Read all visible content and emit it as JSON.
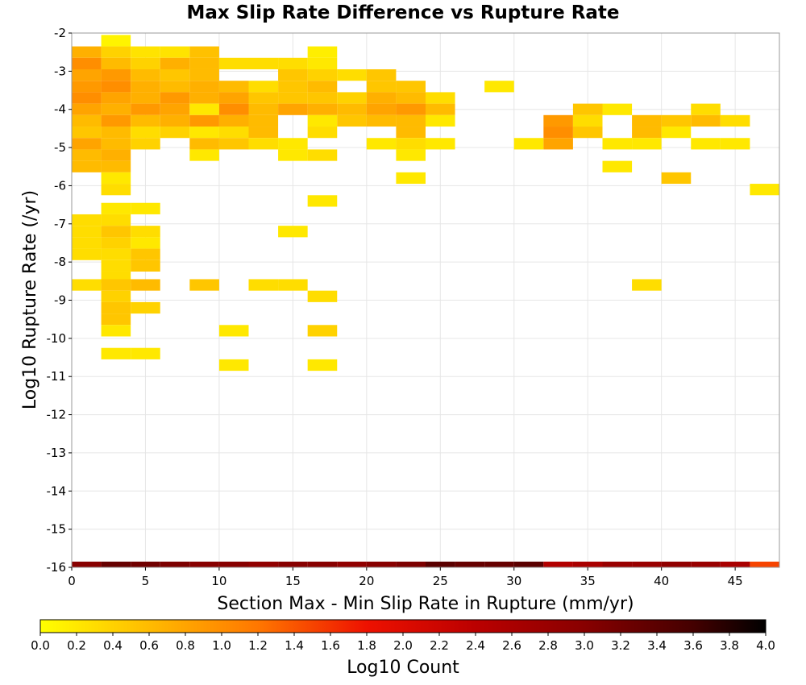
{
  "chart_data": {
    "type": "heatmap",
    "title": "Max Slip Rate Difference vs Rupture Rate",
    "xlabel": "Section Max - Min Slip Rate in Rupture (mm/yr)",
    "ylabel": "Log10 Rupture Rate (/yr)",
    "xlim": [
      0,
      48
    ],
    "ylim": [
      -16,
      -2
    ],
    "x_bin_width": 2,
    "y_bin_height": 0.3,
    "x_ticks": [
      "0",
      "5",
      "10",
      "15",
      "20",
      "25",
      "30",
      "35",
      "40",
      "45"
    ],
    "y_ticks": [
      "-2",
      "-3",
      "-4",
      "-5",
      "-6",
      "-7",
      "-8",
      "-9",
      "-10",
      "-11",
      "-12",
      "-13",
      "-14",
      "-15",
      "-16"
    ],
    "grid": true,
    "colorscale": {
      "label": "Log10 Count",
      "min": 0.0,
      "max": 4.0,
      "ticks": [
        "0.0",
        "0.2",
        "0.4",
        "0.6",
        "0.8",
        "1.0",
        "1.2",
        "1.4",
        "1.6",
        "1.8",
        "2.0",
        "2.2",
        "2.4",
        "2.6",
        "2.8",
        "3.0",
        "3.2",
        "3.4",
        "3.6",
        "3.8",
        "4.0"
      ],
      "stops": [
        {
          "v": 0.0,
          "color": "#ffff00"
        },
        {
          "v": 0.6,
          "color": "#ffbb00"
        },
        {
          "v": 1.2,
          "color": "#ff7700"
        },
        {
          "v": 1.8,
          "color": "#ee1100"
        },
        {
          "v": 2.4,
          "color": "#bb0000"
        },
        {
          "v": 3.0,
          "color": "#880000"
        },
        {
          "v": 3.6,
          "color": "#440000"
        },
        {
          "v": 4.0,
          "color": "#000000"
        }
      ]
    },
    "cells": [
      [
        2,
        -2.2,
        0.1
      ],
      [
        0,
        -2.5,
        0.7
      ],
      [
        2,
        -2.5,
        0.4
      ],
      [
        4,
        -2.5,
        0.25
      ],
      [
        6,
        -2.5,
        0.25
      ],
      [
        8,
        -2.5,
        0.55
      ],
      [
        16,
        -2.5,
        0.15
      ],
      [
        0,
        -2.8,
        1.0
      ],
      [
        2,
        -2.8,
        0.6
      ],
      [
        4,
        -2.8,
        0.4
      ],
      [
        6,
        -2.8,
        0.7
      ],
      [
        8,
        -2.8,
        0.6
      ],
      [
        10,
        -2.8,
        0.3
      ],
      [
        12,
        -2.8,
        0.3
      ],
      [
        14,
        -2.8,
        0.3
      ],
      [
        16,
        -2.8,
        0.2
      ],
      [
        0,
        -3.1,
        0.8
      ],
      [
        2,
        -3.1,
        0.9
      ],
      [
        4,
        -3.1,
        0.6
      ],
      [
        6,
        -3.1,
        0.5
      ],
      [
        8,
        -3.1,
        0.6
      ],
      [
        14,
        -3.1,
        0.5
      ],
      [
        16,
        -3.1,
        0.4
      ],
      [
        18,
        -3.1,
        0.3
      ],
      [
        20,
        -3.1,
        0.5
      ],
      [
        0,
        -3.4,
        0.9
      ],
      [
        2,
        -3.4,
        1.0
      ],
      [
        4,
        -3.4,
        0.7
      ],
      [
        6,
        -3.4,
        0.6
      ],
      [
        8,
        -3.4,
        0.7
      ],
      [
        10,
        -3.4,
        0.6
      ],
      [
        12,
        -3.4,
        0.3
      ],
      [
        14,
        -3.4,
        0.5
      ],
      [
        16,
        -3.4,
        0.6
      ],
      [
        20,
        -3.4,
        0.5
      ],
      [
        22,
        -3.4,
        0.5
      ],
      [
        28,
        -3.4,
        0.2
      ],
      [
        0,
        -3.7,
        1.0
      ],
      [
        2,
        -3.7,
        0.8
      ],
      [
        4,
        -3.7,
        0.7
      ],
      [
        6,
        -3.7,
        0.9
      ],
      [
        8,
        -3.7,
        0.7
      ],
      [
        10,
        -3.7,
        0.8
      ],
      [
        12,
        -3.7,
        0.5
      ],
      [
        14,
        -3.7,
        0.5
      ],
      [
        16,
        -3.7,
        0.5
      ],
      [
        18,
        -3.7,
        0.4
      ],
      [
        20,
        -3.7,
        0.7
      ],
      [
        22,
        -3.7,
        0.6
      ],
      [
        24,
        -3.7,
        0.3
      ],
      [
        0,
        -4.0,
        0.8
      ],
      [
        2,
        -4.0,
        0.7
      ],
      [
        4,
        -4.0,
        0.9
      ],
      [
        6,
        -4.0,
        0.8
      ],
      [
        8,
        -4.0,
        0.2
      ],
      [
        10,
        -4.0,
        1.0
      ],
      [
        12,
        -4.0,
        0.6
      ],
      [
        14,
        -4.0,
        0.8
      ],
      [
        16,
        -4.0,
        0.7
      ],
      [
        18,
        -4.0,
        0.6
      ],
      [
        20,
        -4.0,
        0.8
      ],
      [
        22,
        -4.0,
        0.9
      ],
      [
        24,
        -4.0,
        0.6
      ],
      [
        34,
        -4.0,
        0.5
      ],
      [
        36,
        -4.0,
        0.2
      ],
      [
        42,
        -4.0,
        0.3
      ],
      [
        0,
        -4.3,
        0.6
      ],
      [
        2,
        -4.3,
        0.9
      ],
      [
        4,
        -4.3,
        0.6
      ],
      [
        6,
        -4.3,
        0.7
      ],
      [
        8,
        -4.3,
        0.9
      ],
      [
        10,
        -4.3,
        0.7
      ],
      [
        12,
        -4.3,
        0.6
      ],
      [
        16,
        -4.3,
        0.2
      ],
      [
        18,
        -4.3,
        0.5
      ],
      [
        20,
        -4.3,
        0.6
      ],
      [
        22,
        -4.3,
        0.6
      ],
      [
        24,
        -4.3,
        0.2
      ],
      [
        32,
        -4.3,
        0.9
      ],
      [
        34,
        -4.3,
        0.3
      ],
      [
        38,
        -4.3,
        0.6
      ],
      [
        40,
        -4.3,
        0.5
      ],
      [
        42,
        -4.3,
        0.6
      ],
      [
        44,
        -4.3,
        0.3
      ],
      [
        0,
        -4.6,
        0.5
      ],
      [
        2,
        -4.6,
        0.6
      ],
      [
        4,
        -4.6,
        0.3
      ],
      [
        6,
        -4.6,
        0.4
      ],
      [
        8,
        -4.6,
        0.2
      ],
      [
        10,
        -4.6,
        0.3
      ],
      [
        12,
        -4.6,
        0.6
      ],
      [
        16,
        -4.6,
        0.3
      ],
      [
        22,
        -4.6,
        0.6
      ],
      [
        32,
        -4.6,
        1.0
      ],
      [
        34,
        -4.6,
        0.5
      ],
      [
        38,
        -4.6,
        0.6
      ],
      [
        40,
        -4.6,
        0.2
      ],
      [
        0,
        -4.9,
        0.8
      ],
      [
        2,
        -4.9,
        0.6
      ],
      [
        4,
        -4.9,
        0.4
      ],
      [
        8,
        -4.9,
        0.6
      ],
      [
        10,
        -4.9,
        0.5
      ],
      [
        12,
        -4.9,
        0.3
      ],
      [
        14,
        -4.9,
        0.2
      ],
      [
        20,
        -4.9,
        0.2
      ],
      [
        22,
        -4.9,
        0.3
      ],
      [
        24,
        -4.9,
        0.2
      ],
      [
        30,
        -4.9,
        0.2
      ],
      [
        32,
        -4.9,
        0.8
      ],
      [
        36,
        -4.9,
        0.2
      ],
      [
        38,
        -4.9,
        0.2
      ],
      [
        42,
        -4.9,
        0.2
      ],
      [
        44,
        -4.9,
        0.2
      ],
      [
        0,
        -5.2,
        0.6
      ],
      [
        2,
        -5.2,
        0.7
      ],
      [
        8,
        -5.2,
        0.2
      ],
      [
        14,
        -5.2,
        0.2
      ],
      [
        16,
        -5.2,
        0.3
      ],
      [
        22,
        -5.2,
        0.2
      ],
      [
        0,
        -5.5,
        0.6
      ],
      [
        2,
        -5.5,
        0.6
      ],
      [
        36,
        -5.5,
        0.2
      ],
      [
        2,
        -5.8,
        0.2
      ],
      [
        22,
        -5.8,
        0.2
      ],
      [
        40,
        -5.8,
        0.5
      ],
      [
        2,
        -6.1,
        0.3
      ],
      [
        46,
        -6.1,
        0.2
      ],
      [
        16,
        -6.4,
        0.2
      ],
      [
        2,
        -6.6,
        0.2
      ],
      [
        4,
        -6.6,
        0.2
      ],
      [
        0,
        -6.9,
        0.3
      ],
      [
        2,
        -6.9,
        0.3
      ],
      [
        0,
        -7.2,
        0.3
      ],
      [
        2,
        -7.2,
        0.5
      ],
      [
        4,
        -7.2,
        0.3
      ],
      [
        14,
        -7.2,
        0.2
      ],
      [
        0,
        -7.5,
        0.3
      ],
      [
        2,
        -7.5,
        0.4
      ],
      [
        4,
        -7.5,
        0.2
      ],
      [
        0,
        -7.8,
        0.3
      ],
      [
        2,
        -7.8,
        0.3
      ],
      [
        4,
        -7.8,
        0.5
      ],
      [
        2,
        -8.1,
        0.3
      ],
      [
        4,
        -8.1,
        0.5
      ],
      [
        2,
        -8.4,
        0.3
      ],
      [
        0,
        -8.6,
        0.3
      ],
      [
        2,
        -8.6,
        0.5
      ],
      [
        4,
        -8.6,
        0.6
      ],
      [
        8,
        -8.6,
        0.5
      ],
      [
        12,
        -8.6,
        0.3
      ],
      [
        14,
        -8.6,
        0.3
      ],
      [
        38,
        -8.6,
        0.3
      ],
      [
        2,
        -8.9,
        0.4
      ],
      [
        16,
        -8.9,
        0.3
      ],
      [
        2,
        -9.2,
        0.5
      ],
      [
        4,
        -9.2,
        0.4
      ],
      [
        2,
        -9.5,
        0.5
      ],
      [
        2,
        -9.8,
        0.2
      ],
      [
        10,
        -9.8,
        0.2
      ],
      [
        16,
        -9.8,
        0.4
      ],
      [
        2,
        -10.4,
        0.2
      ],
      [
        4,
        -10.4,
        0.2
      ],
      [
        10,
        -10.7,
        0.2
      ],
      [
        16,
        -10.7,
        0.2
      ],
      [
        0,
        -16.0,
        3.0
      ],
      [
        2,
        -16.0,
        3.3
      ],
      [
        4,
        -16.0,
        3.2
      ],
      [
        6,
        -16.0,
        3.1
      ],
      [
        8,
        -16.0,
        3.0
      ],
      [
        10,
        -16.0,
        3.0
      ],
      [
        12,
        -16.0,
        2.9
      ],
      [
        14,
        -16.0,
        3.0
      ],
      [
        16,
        -16.0,
        3.0
      ],
      [
        18,
        -16.0,
        2.9
      ],
      [
        20,
        -16.0,
        3.0
      ],
      [
        22,
        -16.0,
        3.1
      ],
      [
        24,
        -16.0,
        3.4
      ],
      [
        26,
        -16.0,
        3.3
      ],
      [
        28,
        -16.0,
        3.3
      ],
      [
        30,
        -16.0,
        3.4
      ],
      [
        32,
        -16.0,
        2.5
      ],
      [
        34,
        -16.0,
        2.6
      ],
      [
        36,
        -16.0,
        2.8
      ],
      [
        38,
        -16.0,
        2.8
      ],
      [
        40,
        -16.0,
        2.9
      ],
      [
        42,
        -16.0,
        2.8
      ],
      [
        44,
        -16.0,
        2.6
      ],
      [
        46,
        -16.0,
        1.5
      ]
    ]
  }
}
